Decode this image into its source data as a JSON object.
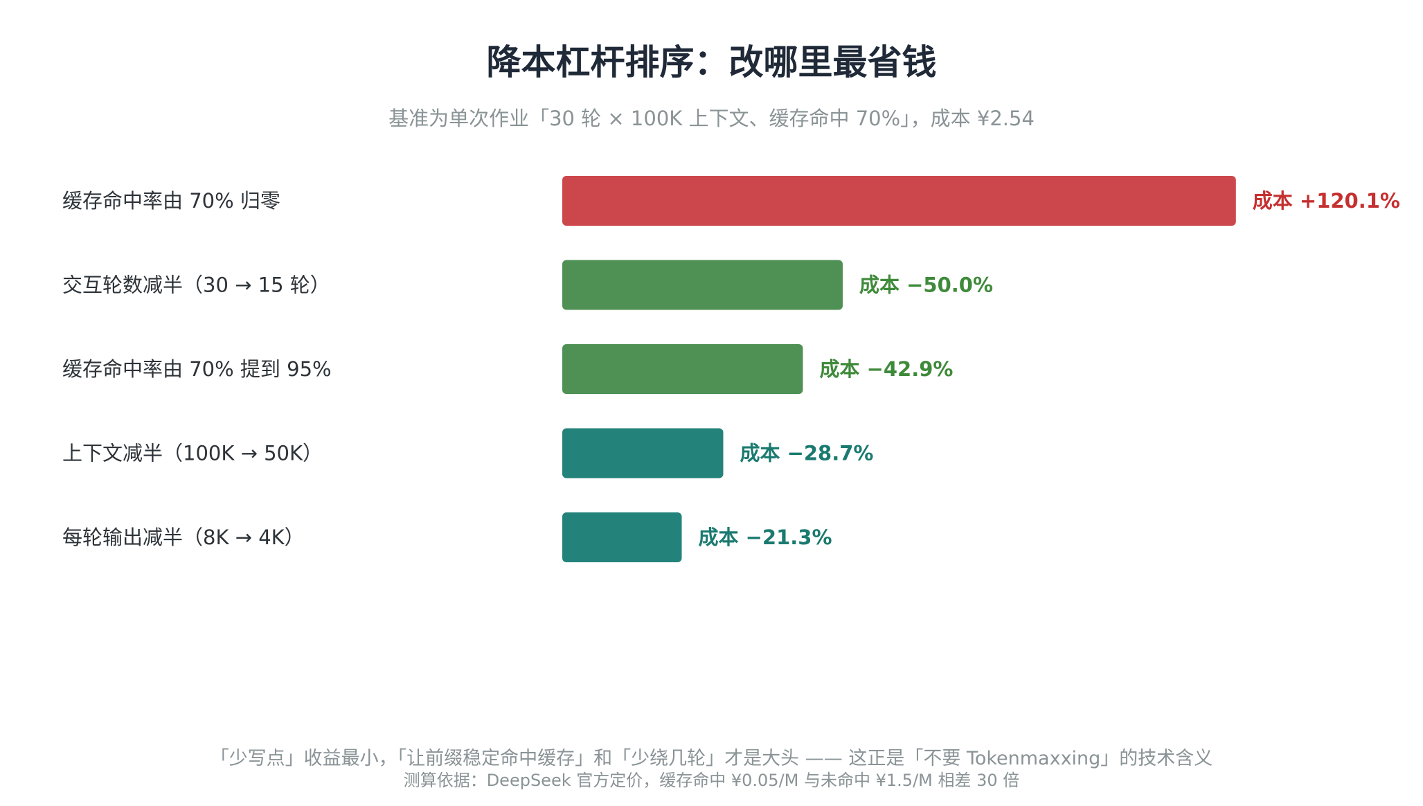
{
  "chart_data": {
    "type": "bar",
    "orientation": "horizontal",
    "title": "降本杠杆排序：改哪里最省钱",
    "subtitle": "基准为单次作业「30 轮 × 100K 上下文、缓存命中 70%」，成本 ¥2.54",
    "categories": [
      "缓存命中率由 70% 归零",
      "交互轮数减半（30 → 15 轮）",
      "缓存命中率由 70% 提到 95%",
      "上下文减半（100K → 50K）",
      "每轮输出减半（8K → 4K）"
    ],
    "values": [
      120.1,
      -50.0,
      -42.9,
      -28.7,
      -21.3
    ],
    "value_labels": [
      "成本 +120.1%",
      "成本 −50.0%",
      "成本 −42.9%",
      "成本 −28.7%",
      "成本 −21.3%"
    ],
    "bar_colors": [
      "#cc474b",
      "#4f9154",
      "#4f9154",
      "#23837a",
      "#23837a"
    ],
    "label_colors": [
      "#c53030",
      "#3f8a3a",
      "#3f8a3a",
      "#1b7a70",
      "#1b7a70"
    ],
    "grid": false,
    "legend": "none"
  },
  "footer": {
    "line1": "「少写点」收益最小，「让前缀稳定命中缓存」和「少绕几轮」才是大头 —— 这正是「不要 Tokenmaxxing」的技术含义",
    "line2": "测算依据：DeepSeek 官方定价，缓存命中 ¥0.05/M 与未命中 ¥1.5/M 相差 30 倍"
  }
}
